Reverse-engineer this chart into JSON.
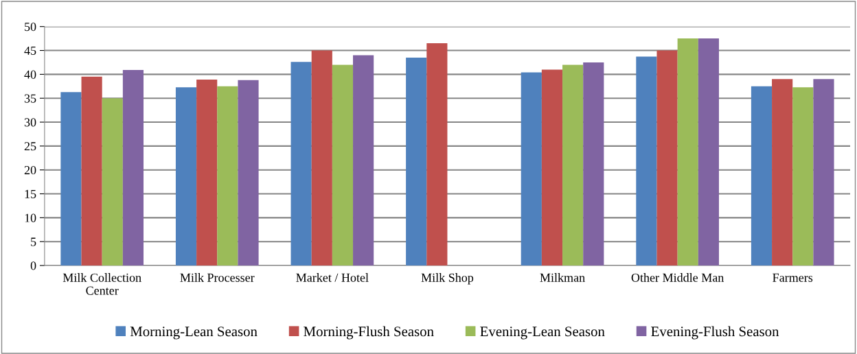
{
  "chart_data": {
    "type": "bar",
    "categories": [
      "Milk Collection\nCenter",
      "Milk Processer",
      "Market / Hotel",
      "Milk Shop",
      "Milkman",
      "Other Middle Man",
      "Farmers"
    ],
    "series": [
      {
        "name": "Morning-Lean Season",
        "color": "#4f81bd",
        "values": [
          36.3,
          37.3,
          42.6,
          43.5,
          40.4,
          43.7,
          37.5
        ]
      },
      {
        "name": "Morning-Flush Season",
        "color": "#c0504d",
        "values": [
          39.5,
          38.9,
          45,
          46.5,
          41,
          45,
          39
        ]
      },
      {
        "name": "Evening-Lean Season",
        "color": "#9bbb59",
        "values": [
          35,
          37.5,
          42,
          null,
          42,
          47.5,
          37.3
        ]
      },
      {
        "name": "Evening-Flush Season",
        "color": "#8064a2",
        "values": [
          40.9,
          38.8,
          44,
          null,
          42.5,
          47.5,
          39
        ]
      }
    ],
    "ylim": [
      0,
      50
    ],
    "yticks": [
      0,
      5,
      10,
      15,
      20,
      25,
      30,
      35,
      40,
      45,
      50
    ],
    "grid": "y",
    "legend": "bottom"
  }
}
